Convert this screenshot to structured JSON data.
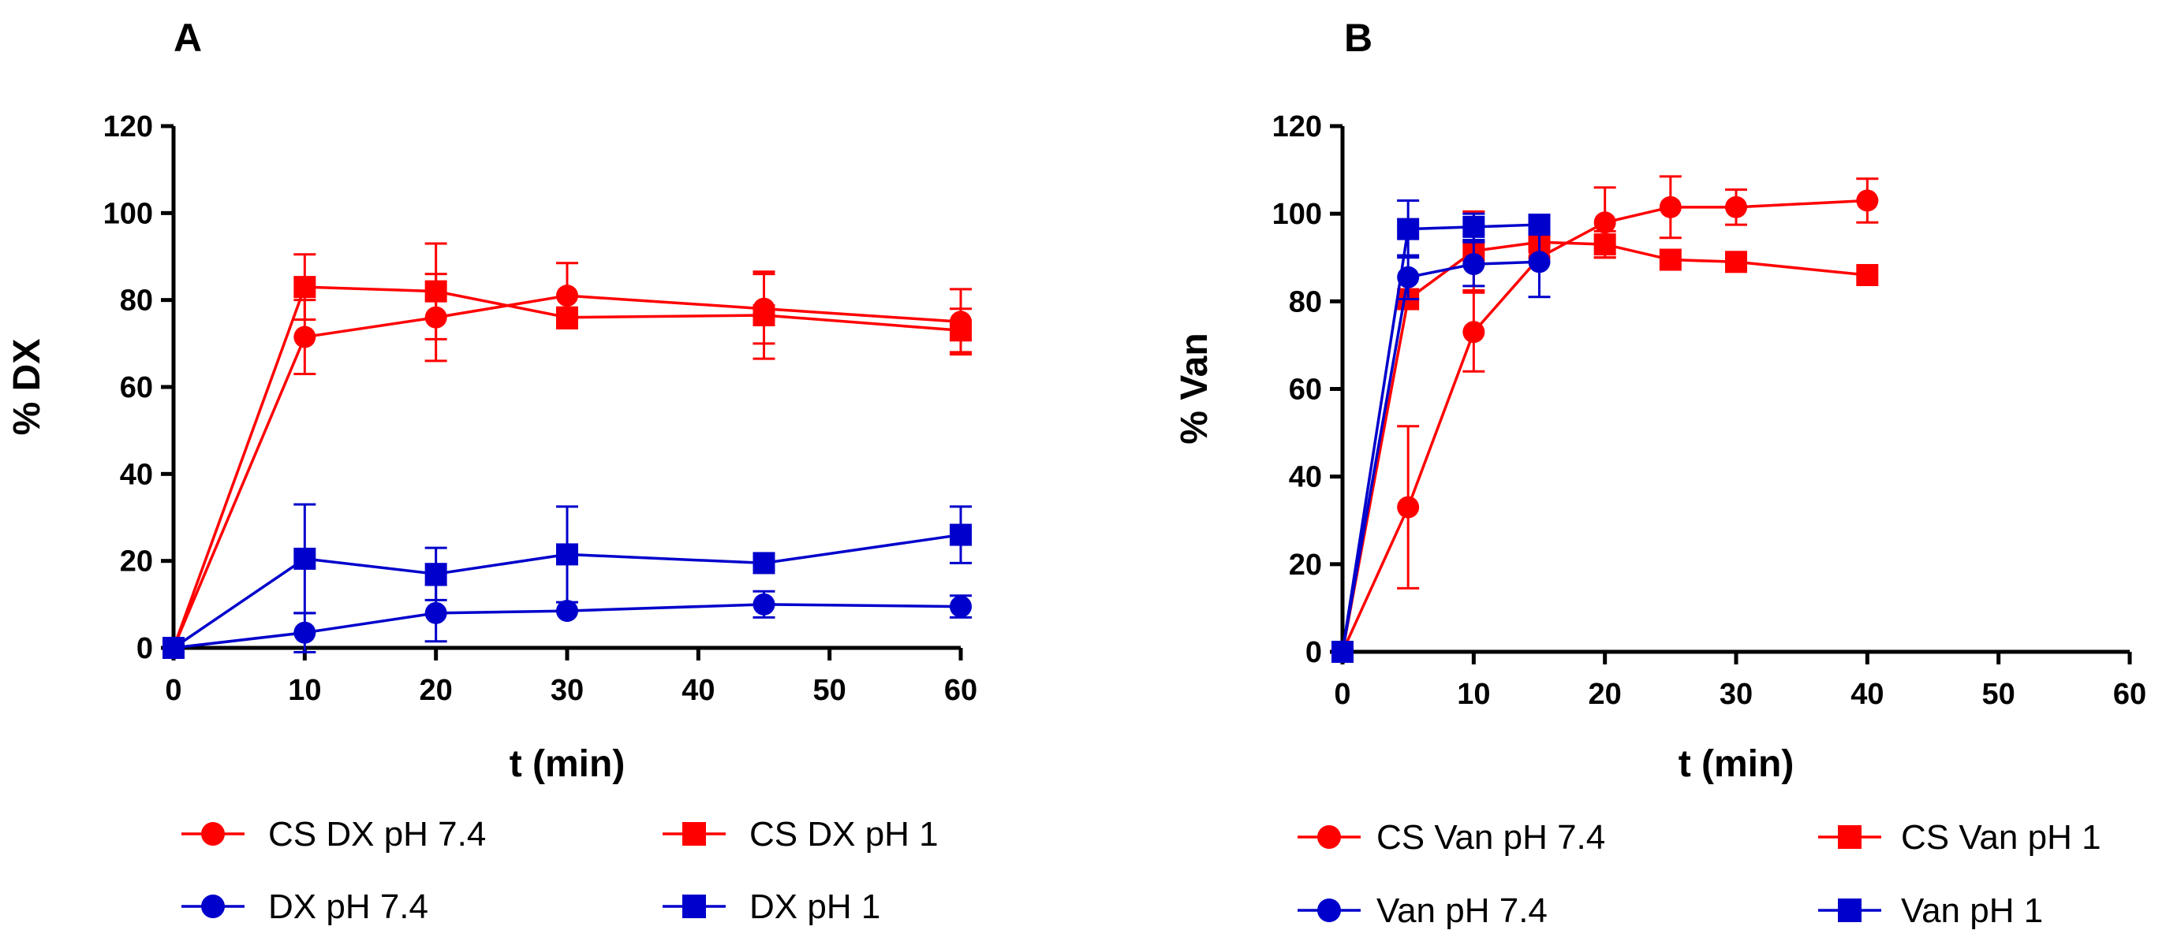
{
  "chart_data": [
    {
      "type": "line",
      "panel_label": "A",
      "title": "",
      "xlabel": "t (min)",
      "ylabel": "% DX",
      "xlim": [
        0,
        60
      ],
      "ylim": [
        0,
        120
      ],
      "xticks": [
        0,
        10,
        20,
        30,
        40,
        50,
        60
      ],
      "yticks": [
        0,
        20,
        40,
        60,
        80,
        100,
        120
      ],
      "grid": false,
      "legend_position": "bottom",
      "series": [
        {
          "name": "CS DX pH 7.4",
          "color": "#ff0000",
          "marker": "circle",
          "x": [
            0,
            10,
            20,
            30,
            45,
            60
          ],
          "y": [
            0,
            71.5,
            76,
            81,
            78,
            75
          ],
          "err": [
            0,
            8.5,
            10,
            7.5,
            8,
            7.5
          ]
        },
        {
          "name": "CS DX pH 1",
          "color": "#ff0000",
          "marker": "square",
          "x": [
            0,
            10,
            20,
            30,
            45,
            60
          ],
          "y": [
            0,
            83,
            82,
            76,
            76.5,
            73
          ],
          "err": [
            0,
            7.5,
            11,
            0,
            10,
            5
          ]
        },
        {
          "name": "DX pH 7.4",
          "color": "#0000cc",
          "marker": "circle",
          "x": [
            0,
            10,
            20,
            30,
            45,
            60
          ],
          "y": [
            0,
            3.5,
            8,
            8.5,
            10,
            9.5
          ],
          "err": [
            0,
            4.5,
            6.5,
            0,
            3,
            2.5
          ]
        },
        {
          "name": "DX pH 1",
          "color": "#0000cc",
          "marker": "square",
          "x": [
            0,
            10,
            20,
            30,
            45,
            60
          ],
          "y": [
            0,
            20.5,
            17,
            21.5,
            19.5,
            26
          ],
          "err": [
            0,
            12.5,
            6,
            11,
            0,
            6.5
          ]
        }
      ]
    },
    {
      "type": "line",
      "panel_label": "B",
      "title": "",
      "xlabel": "t (min)",
      "ylabel": "% Van",
      "xlim": [
        0,
        60
      ],
      "ylim": [
        0,
        120
      ],
      "xticks": [
        0,
        10,
        20,
        30,
        40,
        50,
        60
      ],
      "yticks": [
        0,
        20,
        40,
        60,
        80,
        100,
        120
      ],
      "grid": false,
      "legend_position": "bottom",
      "series": [
        {
          "name": "CS Van pH 7.4",
          "color": "#ff0000",
          "marker": "circle",
          "x": [
            0,
            5,
            10,
            15,
            20,
            25,
            30,
            40
          ],
          "y": [
            0,
            33,
            73,
            90,
            98,
            101.5,
            101.5,
            103
          ],
          "err": [
            0,
            18.5,
            9,
            0,
            8,
            7,
            4,
            5
          ]
        },
        {
          "name": "CS Van pH 1",
          "color": "#ff0000",
          "marker": "square",
          "x": [
            0,
            5,
            10,
            15,
            20,
            25,
            30,
            40
          ],
          "y": [
            0,
            80.5,
            91.5,
            93.5,
            93,
            89.5,
            89,
            86
          ],
          "err": [
            0,
            0,
            9,
            0,
            3,
            0,
            0,
            0
          ]
        },
        {
          "name": "Van pH 7.4",
          "color": "#0000cc",
          "marker": "circle",
          "x": [
            0,
            5,
            10,
            15
          ],
          "y": [
            0,
            85.5,
            88.5,
            89
          ],
          "err": [
            0,
            5,
            5,
            8
          ]
        },
        {
          "name": "Van pH 1",
          "color": "#0000cc",
          "marker": "square",
          "x": [
            0,
            5,
            10,
            15
          ],
          "y": [
            0,
            96.5,
            97,
            97.5
          ],
          "err": [
            0,
            6.5,
            3,
            0
          ]
        }
      ]
    }
  ]
}
